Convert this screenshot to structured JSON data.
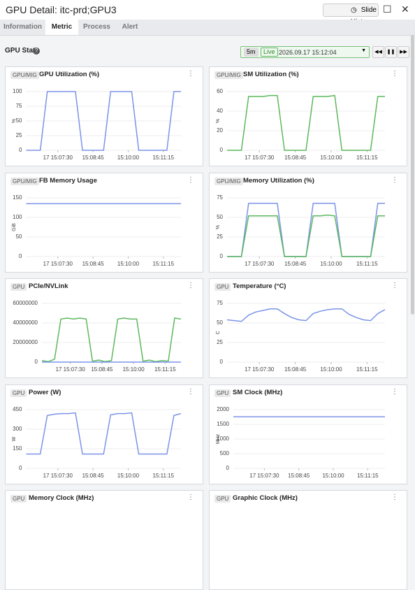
{
  "header": {
    "title": "GPU Detail: itc-prd;GPU3",
    "button": "Slide History"
  },
  "tabs": [
    "Information",
    "Metric",
    "Process",
    "Alert"
  ],
  "active_tab": 1,
  "toolbar": {
    "label": "GPU Stat",
    "range": "5m",
    "live": "Live",
    "time": "2026.09.17 15:12:04"
  },
  "panels": [
    {
      "tag": "GPU/MIG",
      "title": "GPU Utilization (%)",
      "type": "line",
      "unit": "%",
      "grid": true,
      "xlim": [
        0,
        22
      ],
      "ylim": [
        0,
        100
      ],
      "yticks": [
        0,
        25,
        50,
        75,
        100
      ],
      "xticks": [
        {
          "value": 4.5,
          "label": "17 15:07:30"
        },
        {
          "value": 9.5,
          "label": "15:08:45"
        },
        {
          "value": 14.5,
          "label": "15:10:00"
        },
        {
          "value": 19.5,
          "label": "15:11:15"
        }
      ],
      "series": [
        {
          "color": "#7b93e8",
          "values": [
            0,
            0,
            0,
            100,
            100,
            100,
            100,
            100,
            0,
            0,
            0,
            0,
            100,
            100,
            100,
            100,
            0,
            0,
            0,
            0,
            0,
            100,
            100
          ]
        }
      ]
    },
    {
      "tag": "GPU/MIG",
      "title": "SM Utilization (%)",
      "type": "line",
      "unit": "%",
      "grid": true,
      "xlim": [
        0,
        22
      ],
      "ylim": [
        0,
        60
      ],
      "yticks": [
        0,
        20,
        40,
        60
      ],
      "xticks": [
        {
          "value": 4.5,
          "label": "17 15:07:30"
        },
        {
          "value": 9.5,
          "label": "15:08:45"
        },
        {
          "value": 14.5,
          "label": "15:10:00"
        },
        {
          "value": 19.5,
          "label": "15:11:15"
        }
      ],
      "series": [
        {
          "color": "#5cb85c",
          "values": [
            0,
            0,
            0,
            55,
            55,
            55,
            56,
            56,
            0,
            0,
            0,
            0,
            55,
            55,
            55,
            56,
            0,
            0,
            0,
            0,
            0,
            55,
            55
          ]
        }
      ]
    },
    {
      "tag": "GPU/MIG",
      "title": "FB Memory Usage",
      "type": "line",
      "unit": "GiB",
      "grid": true,
      "xlim": [
        0,
        22
      ],
      "ylim": [
        0,
        150
      ],
      "yticks": [
        0,
        50,
        100,
        150
      ],
      "xticks": [
        {
          "value": 4.5,
          "label": "17 15:07:30"
        },
        {
          "value": 9.5,
          "label": "15:08:45"
        },
        {
          "value": 14.5,
          "label": "15:10:00"
        },
        {
          "value": 19.5,
          "label": "15:11:15"
        }
      ],
      "series": [
        {
          "color": "#7b93e8",
          "values": [
            135,
            135,
            135,
            135,
            135,
            135,
            135,
            135,
            135,
            135,
            135,
            135,
            135,
            135,
            135,
            135,
            135,
            135,
            135,
            135,
            135,
            135,
            135
          ]
        }
      ]
    },
    {
      "tag": "GPU/MIG",
      "title": "Memory Utilization (%)",
      "type": "line",
      "unit": "%",
      "grid": true,
      "xlim": [
        0,
        22
      ],
      "ylim": [
        0,
        75
      ],
      "yticks": [
        0,
        25,
        50,
        75
      ],
      "xticks": [
        {
          "value": 4.5,
          "label": "17 15:07:30"
        },
        {
          "value": 9.5,
          "label": "15:08:45"
        },
        {
          "value": 14.5,
          "label": "15:10:00"
        },
        {
          "value": 19.5,
          "label": "15:11:15"
        }
      ],
      "series": [
        {
          "color": "#7b93e8",
          "values": [
            0,
            0,
            0,
            68,
            68,
            68,
            68,
            68,
            0,
            0,
            0,
            0,
            68,
            68,
            68,
            68,
            0,
            0,
            0,
            0,
            0,
            68,
            68
          ]
        },
        {
          "color": "#5cb85c",
          "values": [
            0,
            0,
            0,
            52,
            52,
            52,
            52,
            52,
            0,
            0,
            0,
            0,
            52,
            52,
            53,
            52,
            0,
            0,
            0,
            0,
            0,
            52,
            52
          ]
        }
      ]
    },
    {
      "tag": "GPU",
      "title": "PCIe/NVLink",
      "type": "line",
      "grid": true,
      "xlim": [
        0,
        22
      ],
      "ylim": [
        0,
        60000000
      ],
      "yticks": [
        0,
        20000000,
        40000000,
        60000000
      ],
      "xticks": [
        {
          "value": 4.5,
          "label": "17 15:07:30"
        },
        {
          "value": 9.5,
          "label": "15:08:45"
        },
        {
          "value": 14.5,
          "label": "15:10:00"
        },
        {
          "value": 19.5,
          "label": "15:11:15"
        }
      ],
      "series": [
        {
          "color": "#5cb85c",
          "values": [
            1500000,
            500000,
            3000000,
            44000000,
            45000000,
            44000000,
            45000000,
            44000000,
            1000000,
            2000000,
            500000,
            1500000,
            44000000,
            45000000,
            44000000,
            44000000,
            1000000,
            2000000,
            500000,
            1500000,
            1000000,
            45000000,
            44000000
          ]
        },
        {
          "color": "#7b93e8",
          "values": [
            0,
            0,
            0,
            0,
            0,
            0,
            0,
            0,
            0,
            0,
            0,
            0,
            0,
            0,
            0,
            0,
            0,
            0,
            0,
            0,
            0,
            0,
            0
          ]
        }
      ]
    },
    {
      "tag": "GPU",
      "title": "Temperature (°C)",
      "type": "line",
      "unit": "C",
      "grid": true,
      "xlim": [
        0,
        22
      ],
      "ylim": [
        0,
        75
      ],
      "yticks": [
        0,
        25,
        50,
        75
      ],
      "xticks": [
        {
          "value": 4.5,
          "label": "17 15:07:30"
        },
        {
          "value": 9.5,
          "label": "15:08:45"
        },
        {
          "value": 14.5,
          "label": "15:10:00"
        },
        {
          "value": 19.5,
          "label": "15:11:15"
        }
      ],
      "series": [
        {
          "color": "#7b93e8",
          "values": [
            54,
            53,
            52,
            60,
            64,
            66,
            68,
            68,
            62,
            57,
            54,
            53,
            62,
            65,
            67,
            68,
            68,
            61,
            57,
            54,
            53,
            62,
            67
          ]
        }
      ]
    },
    {
      "tag": "GPU",
      "title": "Power (W)",
      "type": "line",
      "unit": "W",
      "grid": true,
      "xlim": [
        0,
        22
      ],
      "ylim": [
        0,
        450
      ],
      "yticks": [
        0,
        150,
        300,
        450
      ],
      "xticks": [
        {
          "value": 4.5,
          "label": "17 15:07:30"
        },
        {
          "value": 9.5,
          "label": "15:08:45"
        },
        {
          "value": 14.5,
          "label": "15:10:00"
        },
        {
          "value": 19.5,
          "label": "15:11:15"
        }
      ],
      "series": [
        {
          "color": "#7b93e8",
          "values": [
            110,
            110,
            110,
            405,
            415,
            420,
            420,
            425,
            110,
            110,
            110,
            110,
            410,
            420,
            420,
            425,
            110,
            110,
            110,
            110,
            110,
            405,
            420
          ]
        }
      ]
    },
    {
      "tag": "GPU",
      "title": "SM Clock (MHz)",
      "type": "line",
      "unit": "MHz",
      "grid": true,
      "xlim": [
        0,
        22
      ],
      "ylim": [
        0,
        2000
      ],
      "yticks": [
        0,
        500,
        1000,
        1500,
        2000
      ],
      "xticks": [
        {
          "value": 4.5,
          "label": "17 15:07:30"
        },
        {
          "value": 9.5,
          "label": "15:08:45"
        },
        {
          "value": 14.5,
          "label": "15:10:00"
        },
        {
          "value": 19.5,
          "label": "15:11:15"
        }
      ],
      "series": [
        {
          "color": "#7b93e8",
          "values": [
            1755,
            1755,
            1755,
            1755,
            1755,
            1755,
            1755,
            1755,
            1755,
            1755,
            1755,
            1755,
            1755,
            1755,
            1755,
            1755,
            1755,
            1755,
            1755,
            1755,
            1755,
            1755,
            1755
          ]
        }
      ]
    },
    {
      "tag": "GPU",
      "title": "Memory Clock (MHz)"
    },
    {
      "tag": "GPU",
      "title": "Graphic Clock (MHz)"
    }
  ]
}
